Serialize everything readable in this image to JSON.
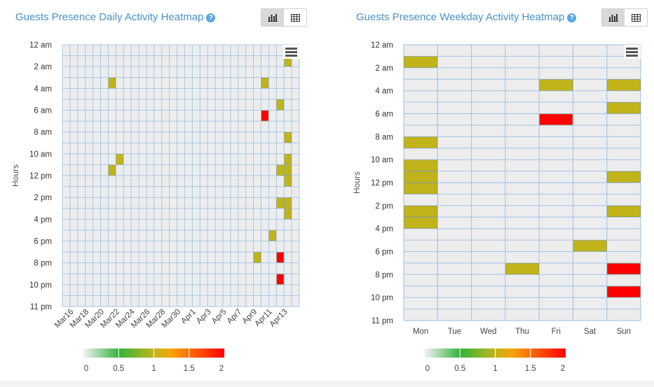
{
  "panels": {
    "daily": {
      "title": "Guests Presence Daily Activity Heatmap",
      "help_icon": "question-circle-icon"
    },
    "weekday": {
      "title": "Guests Presence Weekday Activity Heatmap",
      "help_icon": "question-circle-icon"
    }
  },
  "toggle_icons": {
    "chart": "bar-chart-icon",
    "table": "table-icon"
  },
  "colors": {
    "empty": "#ededed",
    "grid": "#a9c8e8",
    "one": "#c0b41a",
    "two": "#ff0000"
  },
  "chart_data": [
    {
      "type": "heatmap",
      "ylabel": "Hours",
      "y_ticks": [
        "12 am",
        "2 am",
        "4 am",
        "6 am",
        "8 am",
        "10 am",
        "12 pm",
        "2 pm",
        "4 pm",
        "6 pm",
        "8 pm",
        "10 pm",
        "11 pm"
      ],
      "x_ticks": [
        "Mar16",
        "Mar18",
        "Mar20",
        "Mar22",
        "Mar24",
        "Mar26",
        "Mar28",
        "Mar30",
        "Apr1",
        "Apr3",
        "Apr5",
        "Apr7",
        "Apr9",
        "Apr11",
        "Apr13"
      ],
      "x": [
        "Mar15",
        "Mar16",
        "Mar17",
        "Mar18",
        "Mar19",
        "Mar20",
        "Mar21",
        "Mar22",
        "Mar23",
        "Mar24",
        "Mar25",
        "Mar26",
        "Mar27",
        "Mar28",
        "Mar29",
        "Mar30",
        "Mar31",
        "Apr1",
        "Apr2",
        "Apr3",
        "Apr4",
        "Apr5",
        "Apr6",
        "Apr7",
        "Apr8",
        "Apr9",
        "Apr10",
        "Apr11",
        "Apr12",
        "Apr13",
        "Apr14"
      ],
      "y": [
        0,
        1,
        2,
        3,
        4,
        5,
        6,
        7,
        8,
        9,
        10,
        11,
        12,
        13,
        14,
        15,
        16,
        17,
        18,
        19,
        20,
        21,
        22,
        23
      ],
      "cells": [
        {
          "x": "Apr13",
          "hour": 1,
          "value": 1
        },
        {
          "x": "Mar21",
          "hour": 3,
          "value": 1
        },
        {
          "x": "Apr10",
          "hour": 3,
          "value": 1
        },
        {
          "x": "Apr12",
          "hour": 5,
          "value": 1
        },
        {
          "x": "Apr10",
          "hour": 6,
          "value": 2
        },
        {
          "x": "Apr13",
          "hour": 8,
          "value": 1
        },
        {
          "x": "Mar22",
          "hour": 10,
          "value": 1
        },
        {
          "x": "Apr13",
          "hour": 10,
          "value": 1
        },
        {
          "x": "Mar21",
          "hour": 11,
          "value": 1
        },
        {
          "x": "Apr12",
          "hour": 11,
          "value": 1
        },
        {
          "x": "Apr13",
          "hour": 11,
          "value": 1
        },
        {
          "x": "Apr13",
          "hour": 12,
          "value": 1
        },
        {
          "x": "Apr12",
          "hour": 14,
          "value": 1
        },
        {
          "x": "Apr13",
          "hour": 14,
          "value": 1
        },
        {
          "x": "Apr13",
          "hour": 15,
          "value": 1
        },
        {
          "x": "Apr11",
          "hour": 17,
          "value": 1
        },
        {
          "x": "Apr9",
          "hour": 19,
          "value": 1
        },
        {
          "x": "Apr12",
          "hour": 19,
          "value": 2
        },
        {
          "x": "Apr12",
          "hour": 21,
          "value": 2
        }
      ],
      "colorbar": {
        "min": 0,
        "max": 2,
        "ticks": [
          "0",
          "0.5",
          "1",
          "1.5",
          "2"
        ]
      }
    },
    {
      "type": "heatmap",
      "ylabel": "Hours",
      "y_ticks": [
        "12 am",
        "2 am",
        "4 am",
        "6 am",
        "8 am",
        "10 am",
        "12 pm",
        "2 pm",
        "4 pm",
        "6 pm",
        "8 pm",
        "10 pm",
        "11 pm"
      ],
      "x": [
        "Mon",
        "Tue",
        "Wed",
        "Thu",
        "Fri",
        "Sat",
        "Sun"
      ],
      "y": [
        0,
        1,
        2,
        3,
        4,
        5,
        6,
        7,
        8,
        9,
        10,
        11,
        12,
        13,
        14,
        15,
        16,
        17,
        18,
        19,
        20,
        21,
        22,
        23
      ],
      "cells": [
        {
          "x": "Mon",
          "hour": 1,
          "value": 1
        },
        {
          "x": "Fri",
          "hour": 3,
          "value": 1
        },
        {
          "x": "Sun",
          "hour": 3,
          "value": 1
        },
        {
          "x": "Sun",
          "hour": 5,
          "value": 1
        },
        {
          "x": "Fri",
          "hour": 6,
          "value": 2
        },
        {
          "x": "Mon",
          "hour": 8,
          "value": 1
        },
        {
          "x": "Mon",
          "hour": 10,
          "value": 1
        },
        {
          "x": "Mon",
          "hour": 11,
          "value": 1
        },
        {
          "x": "Sun",
          "hour": 11,
          "value": 1
        },
        {
          "x": "Mon",
          "hour": 12,
          "value": 1
        },
        {
          "x": "Mon",
          "hour": 14,
          "value": 1
        },
        {
          "x": "Sun",
          "hour": 14,
          "value": 1
        },
        {
          "x": "Mon",
          "hour": 15,
          "value": 1
        },
        {
          "x": "Sat",
          "hour": 17,
          "value": 1
        },
        {
          "x": "Thu",
          "hour": 19,
          "value": 1
        },
        {
          "x": "Sun",
          "hour": 19,
          "value": 2
        },
        {
          "x": "Sun",
          "hour": 21,
          "value": 2
        }
      ],
      "colorbar": {
        "min": 0,
        "max": 2,
        "ticks": [
          "0",
          "0.5",
          "1",
          "1.5",
          "2"
        ]
      }
    }
  ]
}
